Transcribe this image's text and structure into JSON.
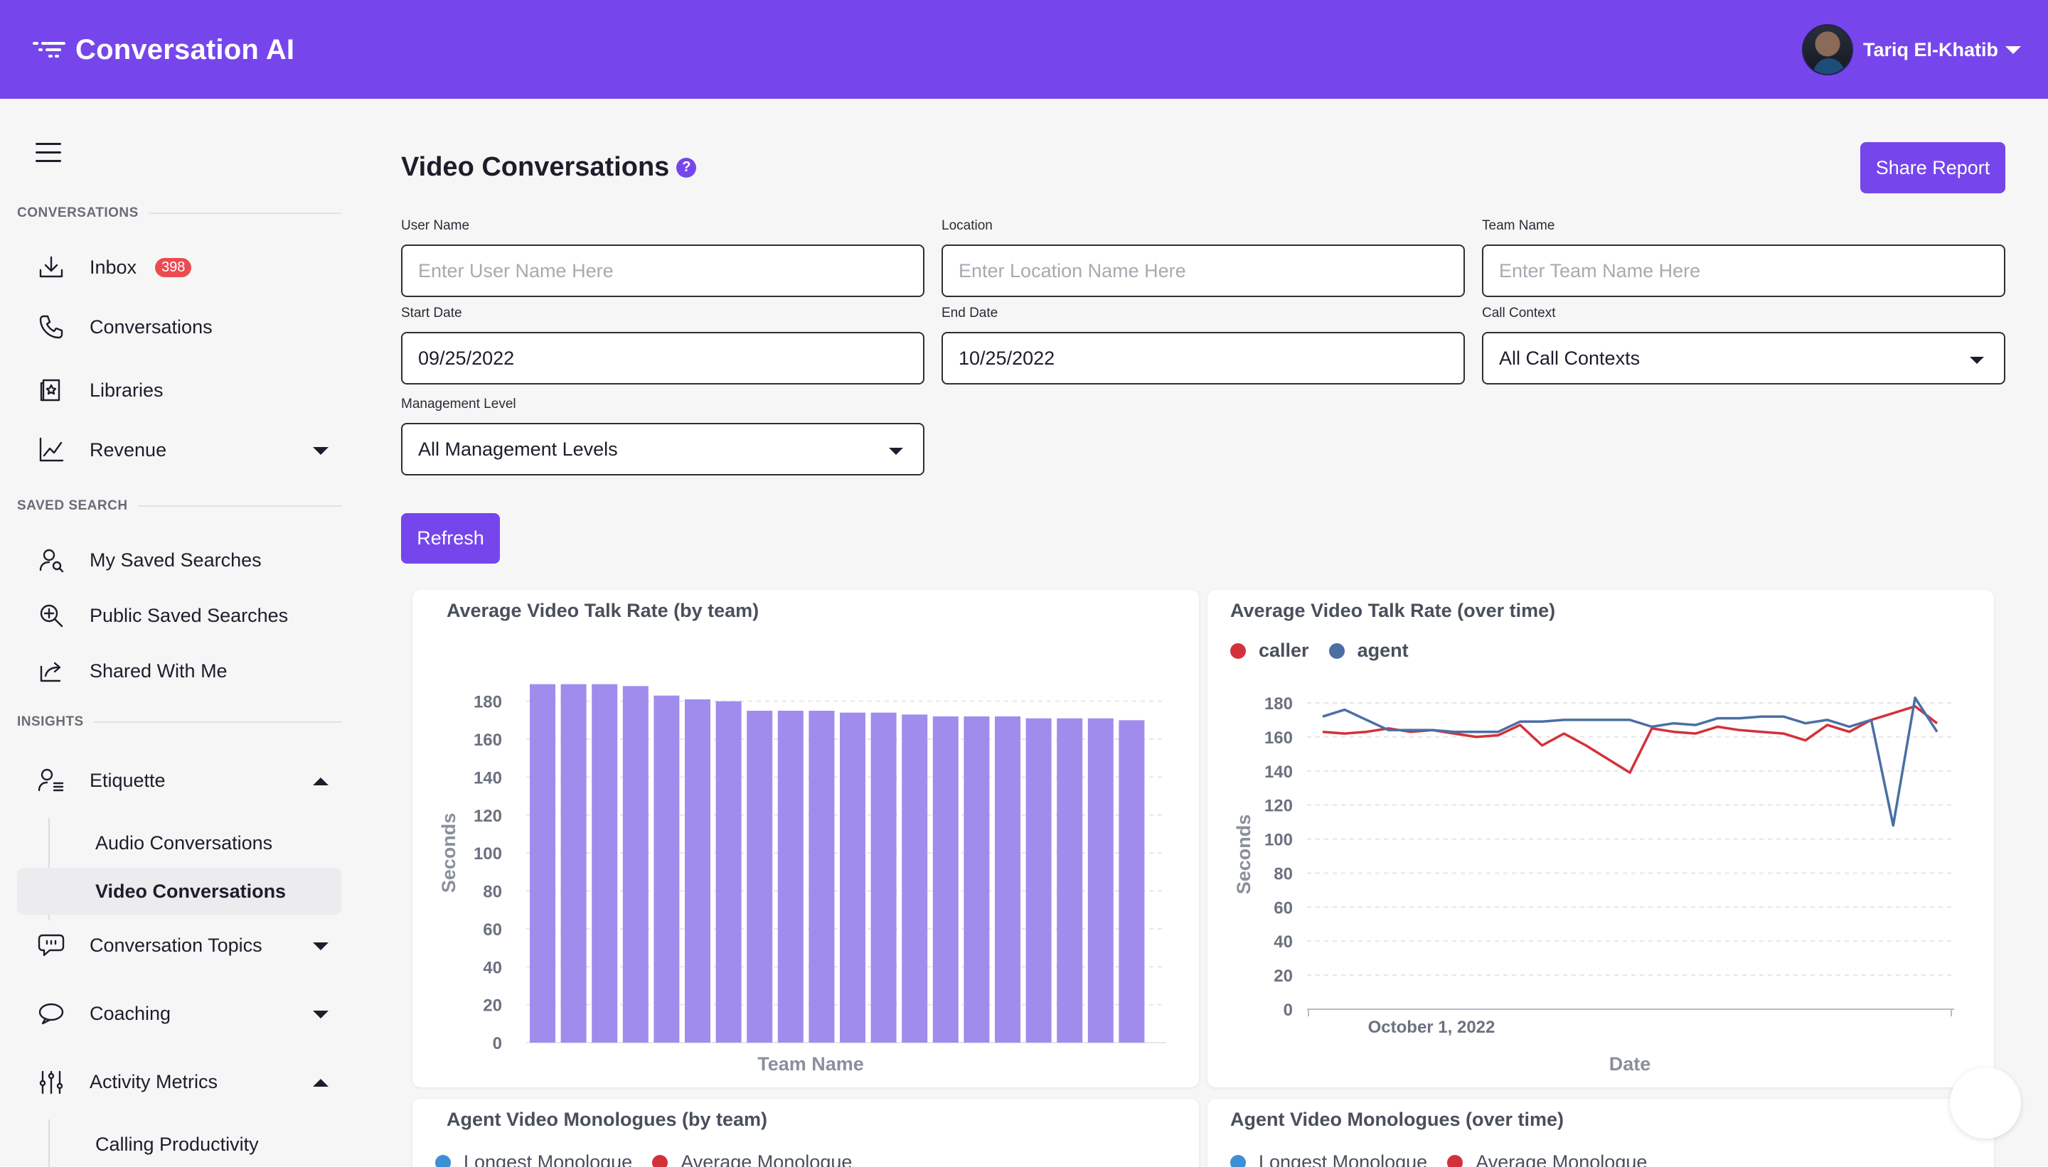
{
  "header": {
    "app_title": "Conversation AI",
    "user_name": "Tariq El-Khatib",
    "brand_color": "#7646ec"
  },
  "sidebar": {
    "sections": {
      "conversations": "CONVERSATIONS",
      "saved_search": "SAVED SEARCH",
      "insights": "INSIGHTS"
    },
    "items": {
      "inbox": {
        "label": "Inbox",
        "badge": "398",
        "icon": "inbox-download-icon"
      },
      "conversations": {
        "label": "Conversations",
        "icon": "phone-icon"
      },
      "libraries": {
        "label": "Libraries",
        "icon": "library-icon"
      },
      "revenue": {
        "label": "Revenue",
        "icon": "line-chart-icon"
      },
      "my_saved": {
        "label": "My Saved Searches",
        "icon": "user-search-icon"
      },
      "public_saved": {
        "label": "Public Saved Searches",
        "icon": "zoom-in-icon"
      },
      "shared": {
        "label": "Shared With Me",
        "icon": "share-icon"
      },
      "etiquette": {
        "label": "Etiquette",
        "icon": "user-list-icon"
      },
      "audio_conv": {
        "label": "Audio Conversations"
      },
      "video_conv": {
        "label": "Video Conversations"
      },
      "topics": {
        "label": "Conversation Topics",
        "icon": "speech-bubble-icon"
      },
      "coaching": {
        "label": "Coaching",
        "icon": "chat-bubble-icon"
      },
      "activity": {
        "label": "Activity Metrics",
        "icon": "sliders-icon"
      },
      "calling_prod": {
        "label": "Calling Productivity"
      }
    }
  },
  "main": {
    "title": "Video Conversations",
    "help_glyph": "?",
    "share_button": "Share Report",
    "refresh_button": "Refresh",
    "filters": {
      "user_name": {
        "label": "User Name",
        "placeholder": "Enter User Name Here"
      },
      "location": {
        "label": "Location",
        "placeholder": "Enter Location Name Here"
      },
      "team_name": {
        "label": "Team Name",
        "placeholder": "Enter Team Name Here"
      },
      "start_date": {
        "label": "Start Date",
        "value": "09/25/2022"
      },
      "end_date": {
        "label": "End Date",
        "value": "10/25/2022"
      },
      "call_context": {
        "label": "Call Context",
        "value": "All Call Contexts"
      },
      "management_level": {
        "label": "Management Level",
        "value": "All Management Levels"
      }
    },
    "cards": {
      "talk_rate_team": {
        "title": "Average Video Talk Rate (by team)"
      },
      "talk_rate_time": {
        "title": "Average Video Talk Rate (over time)"
      },
      "mono_team": {
        "title": "Agent Video Monologues (by team)"
      },
      "mono_time": {
        "title": "Agent Video Monologues (over time)"
      },
      "mono_legend": {
        "longest": "Longest Monologue",
        "average": "Average Monologue"
      }
    }
  },
  "chart_data": [
    {
      "type": "bar",
      "title": "Average Video Talk Rate (by team)",
      "xlabel": "Team Name",
      "ylabel": "Seconds",
      "ylim": [
        0,
        190
      ],
      "yticks": [
        0,
        20,
        40,
        60,
        80,
        100,
        120,
        140,
        160,
        180
      ],
      "grid": true,
      "color": "#a08cec",
      "values": [
        189,
        189,
        189,
        188,
        183,
        181,
        180,
        175,
        175,
        175,
        174,
        174,
        173,
        172,
        172,
        172,
        171,
        171,
        171,
        170
      ]
    },
    {
      "type": "line",
      "title": "Average Video Talk Rate (over time)",
      "xlabel": "Date",
      "ylabel": "Seconds",
      "ylim": [
        0,
        180
      ],
      "yticks": [
        0,
        20,
        40,
        60,
        80,
        100,
        120,
        140,
        160,
        180
      ],
      "xtick_label": "October 1, 2022",
      "grid": true,
      "legend_position": "top-left",
      "series": [
        {
          "name": "caller",
          "color": "#d3313a",
          "values": [
            163,
            162,
            163,
            165,
            163,
            164,
            162,
            160,
            161,
            167,
            155,
            162,
            155,
            147,
            139,
            165,
            163,
            162,
            166,
            164,
            163,
            162,
            158,
            167,
            163,
            170,
            174,
            178,
            168
          ]
        },
        {
          "name": "agent",
          "color": "#4a6fa5",
          "values": [
            172,
            176,
            170,
            164,
            164,
            164,
            163,
            163,
            163,
            169,
            169,
            170,
            170,
            170,
            170,
            166,
            168,
            167,
            171,
            171,
            172,
            172,
            168,
            170,
            166,
            170,
            108,
            183,
            163
          ]
        }
      ]
    }
  ]
}
